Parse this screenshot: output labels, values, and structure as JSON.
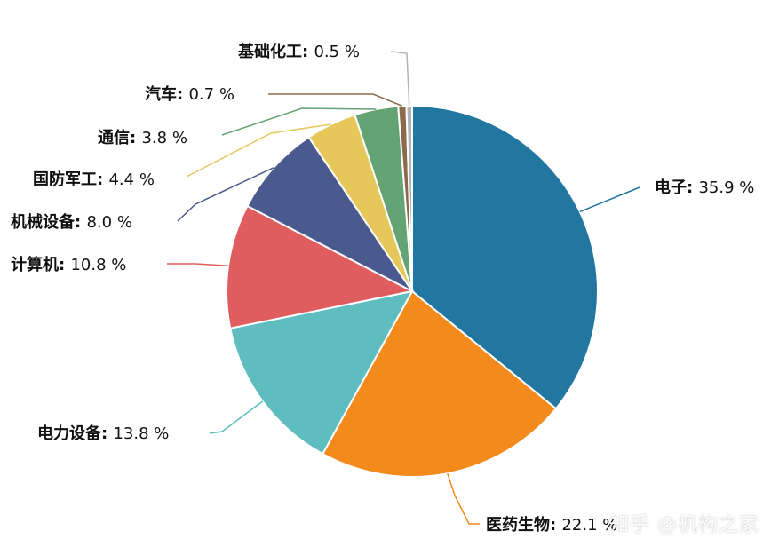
{
  "chart_data": {
    "type": "pie",
    "title": "",
    "slices": [
      {
        "label": "电子",
        "value": 35.9,
        "display": "35.9 %",
        "color": "#2277a1"
      },
      {
        "label": "医药生物",
        "value": 22.1,
        "display": "22.1 %",
        "color": "#f28a1c"
      },
      {
        "label": "电力设备",
        "value": 13.8,
        "display": "13.8 %",
        "color": "#5fbcbf"
      },
      {
        "label": "计算机",
        "value": 10.8,
        "display": "10.8 %",
        "color": "#e05d5f"
      },
      {
        "label": "机械设备",
        "value": 8.0,
        "display": "8.0 %",
        "color": "#4b5a8e"
      },
      {
        "label": "国防军工",
        "value": 4.4,
        "display": "4.4 %",
        "color": "#e5c75a"
      },
      {
        "label": "通信",
        "value": 3.8,
        "display": "3.8 %",
        "color": "#63a374"
      },
      {
        "label": "汽车",
        "value": 0.7,
        "display": "0.7 %",
        "color": "#8c6a4c"
      },
      {
        "label": "基础化工",
        "value": 0.5,
        "display": "0.5 %",
        "color": "#b3b3b3"
      }
    ]
  },
  "watermark": {
    "text": "知乎 @机构之家"
  }
}
